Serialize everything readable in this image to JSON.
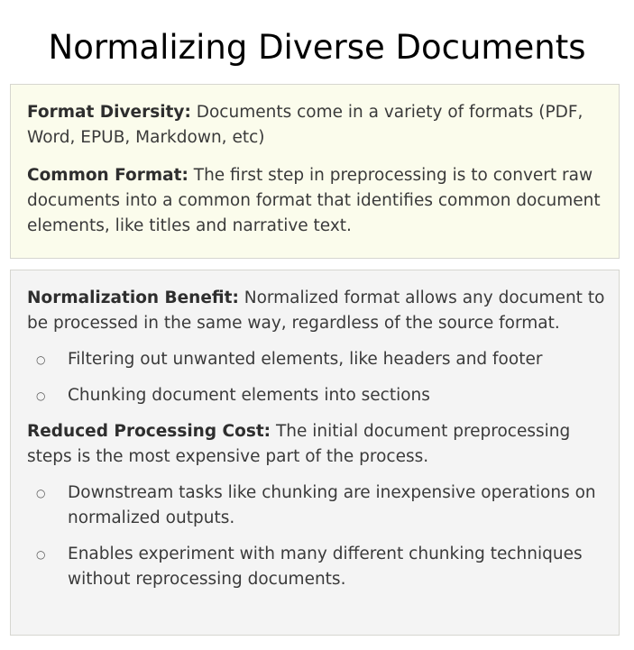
{
  "title": "Normalizing Diverse Documents",
  "box1": {
    "format_diversity": {
      "label": "Format Diversity:",
      "text": " Documents come in a variety of formats (PDF, Word, EPUB, Markdown, etc)"
    },
    "common_format": {
      "label": "Common Format:",
      "text": " The first step in preprocessing is to convert raw documents into a common format that identifies common document elements, like titles and narrative text."
    }
  },
  "box2": {
    "normalization_benefit": {
      "label": "Normalization Benefit:",
      "text": " Normalized format allows any document to be processed in the same way, regardless of the source format.",
      "bullets": [
        "Filtering out unwanted elements, like headers and footer",
        "Chunking document elements into sections"
      ]
    },
    "reduced_cost": {
      "label": "Reduced Processing Cost:",
      "text": " The initial document preprocessing steps is the most expensive part of the process.",
      "bullets": [
        "Downstream tasks like chunking are inexpensive operations on normalized outputs.",
        "Enables experiment with many different chunking techniques without reprocessing documents."
      ]
    }
  },
  "bullet_symbol": "○"
}
